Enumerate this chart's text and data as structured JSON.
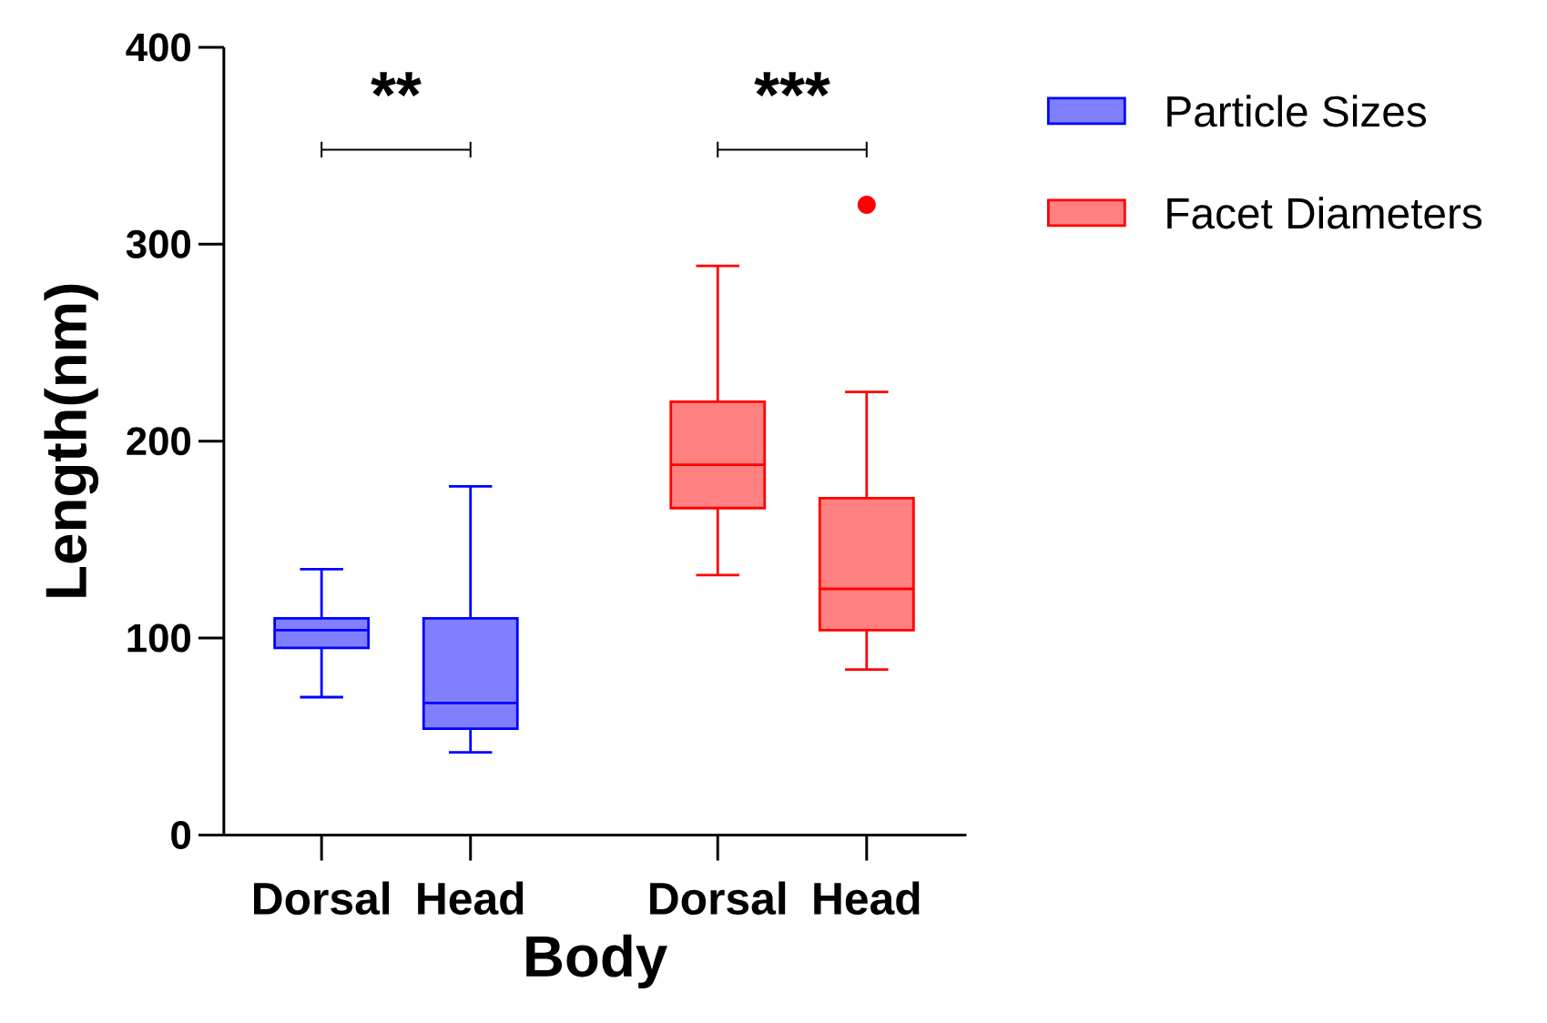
{
  "chart_data": {
    "type": "box",
    "xlabel": "Body",
    "ylabel": "Length(nm)",
    "categories": [
      "Dorsal",
      "Head",
      "Dorsal",
      "Head"
    ],
    "ylim": [
      0,
      400
    ],
    "yticks": [
      0,
      100,
      200,
      300,
      400
    ],
    "legend": "top right",
    "annotations": [
      "**",
      "***"
    ],
    "series": [
      {
        "name": "Particle Sizes",
        "color": "#0000ff",
        "boxes": [
          {
            "low": 70,
            "q1": 95,
            "median": 104,
            "q3": 110,
            "high": 135
          },
          {
            "low": 42,
            "q1": 54,
            "median": 67,
            "q3": 110,
            "high": 177
          },
          null,
          null
        ]
      },
      {
        "name": "Facet Diameters",
        "color": "#ff0000",
        "boxes": [
          null,
          null,
          {
            "low": 132,
            "q1": 166,
            "median": 188,
            "q3": 220,
            "high": 289
          },
          {
            "low": 84,
            "q1": 104,
            "median": 125,
            "q3": 171,
            "high": 225,
            "outliers": [
              320
            ]
          }
        ]
      }
    ]
  }
}
